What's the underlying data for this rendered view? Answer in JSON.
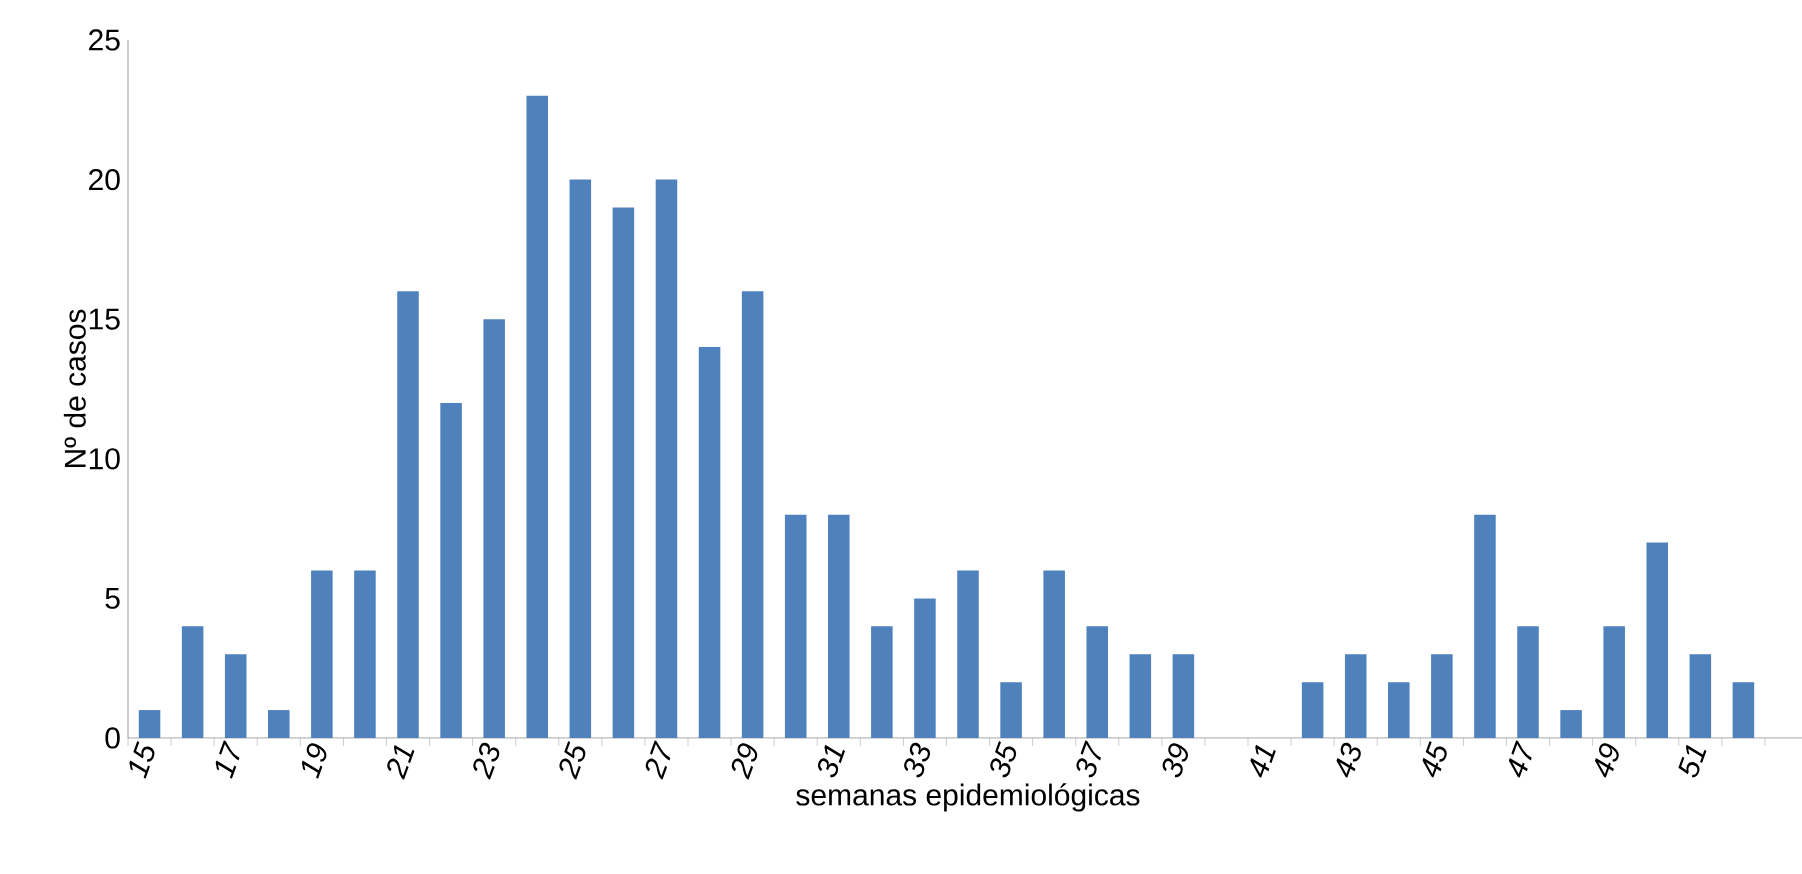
{
  "chart_data": {
    "type": "bar",
    "xlabel": "semanas  epidemiológicas",
    "ylabel": "Nº de casos",
    "categories": [
      "15",
      null,
      "17",
      null,
      "19",
      null,
      "21",
      null,
      "23",
      null,
      "25",
      null,
      "27",
      null,
      "29",
      null,
      "31",
      null,
      "33",
      null,
      "35",
      null,
      "37",
      null,
      "39",
      null,
      "41",
      null,
      "43",
      null,
      "45",
      null,
      "47",
      null,
      "49",
      null,
      "51",
      null,
      null
    ],
    "values": [
      1,
      4,
      3,
      1,
      6,
      6,
      16,
      12,
      15,
      23,
      20,
      19,
      20,
      14,
      16,
      8,
      8,
      4,
      5,
      6,
      2,
      6,
      4,
      3,
      3,
      null,
      null,
      2,
      3,
      2,
      3,
      8,
      4,
      1,
      4,
      7,
      3,
      2,
      null
    ],
    "color": "#4f81bd",
    "ylim": [
      0,
      25
    ],
    "yticks": [
      0,
      5,
      10,
      15,
      20,
      25
    ]
  }
}
